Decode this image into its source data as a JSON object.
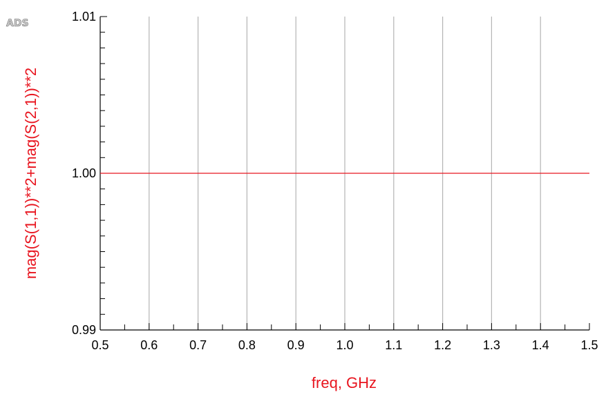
{
  "logo": "ADS",
  "colors": {
    "series": "#e8141e",
    "grid": "#b4b4b4",
    "axis": "#000000",
    "logo_fill": "#cfcfcf",
    "logo_stroke": "#6a6a6a"
  },
  "chart_data": {
    "type": "line",
    "title": "",
    "xlabel": "freq, GHz",
    "ylabel": "mag(S(1,1))**2+mag(S(2,1))**2",
    "xlim": [
      0.5,
      1.5
    ],
    "ylim": [
      0.99,
      1.01
    ],
    "x_ticks": [
      "0.5",
      "0.6",
      "0.7",
      "0.8",
      "0.9",
      "1.0",
      "1.1",
      "1.2",
      "1.3",
      "1.4",
      "1.5"
    ],
    "y_ticks": [
      "0.99",
      "1.00",
      "1.01"
    ],
    "grid": "vertical",
    "series": [
      {
        "x": [
          0.5,
          1.5
        ],
        "y": [
          1.0,
          1.0
        ]
      }
    ]
  }
}
